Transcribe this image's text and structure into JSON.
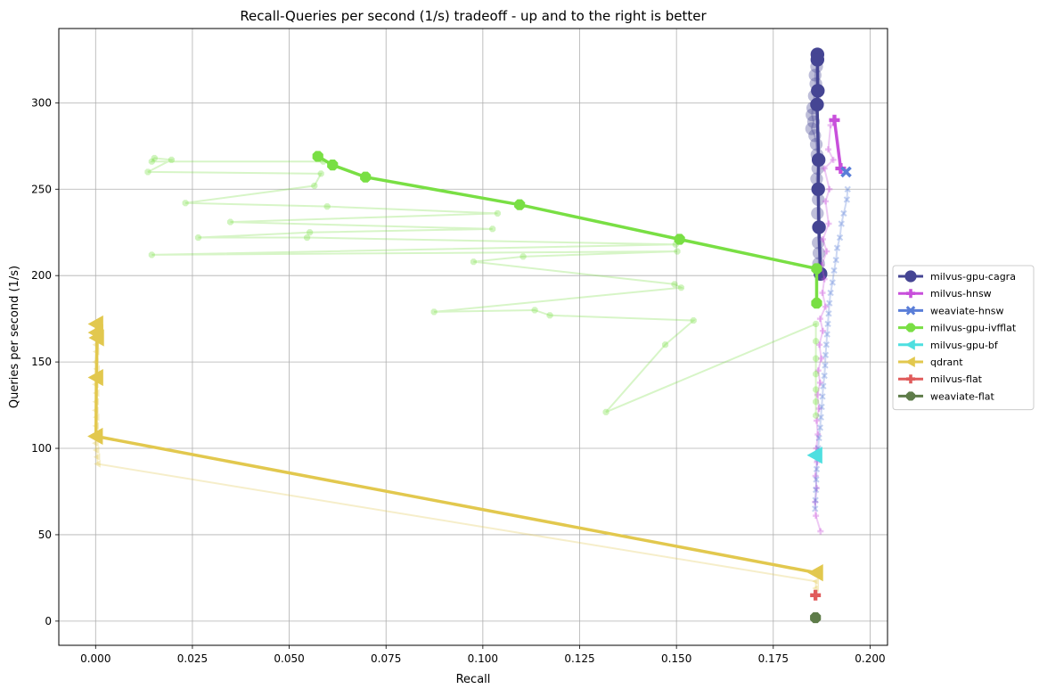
{
  "chart_data": {
    "type": "line",
    "title": "Recall-Queries per second (1/s) tradeoff - up and to the right is better",
    "xlabel": "Recall",
    "ylabel": "Queries per second (1/s)",
    "xlim": [
      -0.0095,
      0.2045
    ],
    "ylim": [
      -14,
      343
    ],
    "xticks": [
      0.0,
      0.025,
      0.05,
      0.075,
      0.1,
      0.125,
      0.15,
      0.175,
      0.2
    ],
    "xtick_labels": [
      "0.000",
      "0.025",
      "0.050",
      "0.075",
      "0.100",
      "0.125",
      "0.150",
      "0.175",
      "0.200"
    ],
    "yticks": [
      0,
      50,
      100,
      150,
      200,
      250,
      300
    ],
    "ytick_labels": [
      "0",
      "50",
      "100",
      "150",
      "200",
      "250",
      "300"
    ],
    "grid": true,
    "legend_position": "right-outside",
    "series": [
      {
        "name": "milvus-gpu-cagra",
        "color": "#454593",
        "marker": "circle",
        "front": [
          [
            0.1864,
            328
          ],
          [
            0.1864,
            325
          ],
          [
            0.1865,
            307
          ],
          [
            0.1863,
            299
          ],
          [
            0.1867,
            267
          ],
          [
            0.1866,
            250
          ],
          [
            0.1868,
            228
          ],
          [
            0.1872,
            201
          ]
        ],
        "scatter": [
          [
            0.1862,
            321
          ],
          [
            0.1858,
            316
          ],
          [
            0.186,
            311
          ],
          [
            0.1856,
            304
          ],
          [
            0.1852,
            297
          ],
          [
            0.185,
            293
          ],
          [
            0.1854,
            289
          ],
          [
            0.1849,
            285
          ],
          [
            0.1857,
            281
          ],
          [
            0.1861,
            276
          ],
          [
            0.1863,
            270
          ],
          [
            0.1865,
            262
          ],
          [
            0.1862,
            256
          ],
          [
            0.1866,
            244
          ],
          [
            0.1864,
            236
          ],
          [
            0.1866,
            219
          ],
          [
            0.1868,
            213
          ],
          [
            0.1867,
            207
          ]
        ]
      },
      {
        "name": "milvus-hnsw",
        "color": "#c84fdb",
        "marker": "plus",
        "front": [
          [
            0.1908,
            290
          ],
          [
            0.1924,
            262
          ]
        ],
        "scatter": [
          [
            0.1898,
            287
          ],
          [
            0.1892,
            273
          ],
          [
            0.1905,
            267
          ],
          [
            0.1882,
            262
          ],
          [
            0.1895,
            250
          ],
          [
            0.1885,
            243
          ],
          [
            0.1893,
            230
          ],
          [
            0.1878,
            221
          ],
          [
            0.1888,
            214
          ],
          [
            0.1875,
            206
          ],
          [
            0.1882,
            198
          ],
          [
            0.1877,
            190
          ],
          [
            0.1885,
            182
          ],
          [
            0.1871,
            175
          ],
          [
            0.1878,
            168
          ],
          [
            0.1869,
            160
          ],
          [
            0.1874,
            152
          ],
          [
            0.1866,
            145
          ],
          [
            0.1871,
            138
          ],
          [
            0.1864,
            131
          ],
          [
            0.1868,
            123
          ],
          [
            0.1862,
            116
          ],
          [
            0.1865,
            108
          ],
          [
            0.1861,
            100
          ],
          [
            0.1863,
            92
          ],
          [
            0.1859,
            84
          ],
          [
            0.1862,
            77
          ],
          [
            0.1858,
            69
          ],
          [
            0.186,
            61
          ],
          [
            0.1872,
            52
          ]
        ]
      },
      {
        "name": "weaviate-hnsw",
        "color": "#5a7ed8",
        "marker": "x",
        "front": [
          [
            0.1938,
            260
          ]
        ],
        "scatter": [
          [
            0.1942,
            250
          ],
          [
            0.194,
            244
          ],
          [
            0.1932,
            236
          ],
          [
            0.1926,
            230
          ],
          [
            0.1922,
            222
          ],
          [
            0.1915,
            216
          ],
          [
            0.1912,
            209
          ],
          [
            0.1907,
            203
          ],
          [
            0.1903,
            196
          ],
          [
            0.1898,
            190
          ],
          [
            0.1895,
            184
          ],
          [
            0.1893,
            178
          ],
          [
            0.1891,
            172
          ],
          [
            0.1889,
            166
          ],
          [
            0.1887,
            160
          ],
          [
            0.1885,
            154
          ],
          [
            0.1884,
            148
          ],
          [
            0.1882,
            142
          ],
          [
            0.1879,
            136
          ],
          [
            0.1877,
            130
          ],
          [
            0.1875,
            124
          ],
          [
            0.1873,
            118
          ],
          [
            0.1871,
            112
          ],
          [
            0.1868,
            106
          ],
          [
            0.1866,
            100
          ],
          [
            0.1864,
            94
          ],
          [
            0.1862,
            88
          ],
          [
            0.1861,
            82
          ],
          [
            0.186,
            76
          ],
          [
            0.1859,
            70
          ],
          [
            0.1858,
            65
          ]
        ]
      },
      {
        "name": "milvus-gpu-ivfflat",
        "color": "#79df44",
        "marker": "octagon",
        "front": [
          [
            0.0574,
            269
          ],
          [
            0.0612,
            264
          ],
          [
            0.0697,
            257
          ],
          [
            0.1095,
            241
          ],
          [
            0.1508,
            221
          ],
          [
            0.1862,
            204
          ],
          [
            0.1862,
            184
          ]
        ],
        "scatter": [
          [
            0.0588,
            266
          ],
          [
            0.0145,
            266
          ],
          [
            0.0152,
            268
          ],
          [
            0.0196,
            267
          ],
          [
            0.0135,
            260
          ],
          [
            0.0582,
            259
          ],
          [
            0.0565,
            252
          ],
          [
            0.0232,
            242
          ],
          [
            0.0598,
            240
          ],
          [
            0.1038,
            236
          ],
          [
            0.0348,
            231
          ],
          [
            0.1025,
            227
          ],
          [
            0.0553,
            225
          ],
          [
            0.0265,
            222
          ],
          [
            0.0546,
            222
          ],
          [
            0.1498,
            218
          ],
          [
            0.0145,
            212
          ],
          [
            0.1502,
            214
          ],
          [
            0.1104,
            211
          ],
          [
            0.0976,
            208
          ],
          [
            0.1495,
            195
          ],
          [
            0.1512,
            193
          ],
          [
            0.0874,
            179
          ],
          [
            0.1134,
            180
          ],
          [
            0.1173,
            177
          ],
          [
            0.1544,
            174
          ],
          [
            0.1471,
            160
          ],
          [
            0.1318,
            121
          ],
          [
            0.186,
            172
          ],
          [
            0.186,
            162
          ],
          [
            0.186,
            152
          ],
          [
            0.186,
            143
          ],
          [
            0.186,
            134
          ],
          [
            0.186,
            127
          ],
          [
            0.186,
            119
          ]
        ]
      },
      {
        "name": "milvus-gpu-bf",
        "color": "#4edfe0",
        "marker": "triangle-left",
        "front": [
          [
            0.1859,
            96
          ]
        ],
        "scatter": []
      },
      {
        "name": "qdrant",
        "color": "#e2c84e",
        "marker": "triangle-left",
        "front": [
          [
            0.0002,
            172
          ],
          [
            0.0002,
            167
          ],
          [
            0.0004,
            164
          ],
          [
            0.0002,
            141
          ],
          [
            0.0001,
            107
          ],
          [
            0.1861,
            28
          ]
        ],
        "scatter": [
          [
            0.0001,
            160
          ],
          [
            0.0002,
            156
          ],
          [
            0.0,
            150
          ],
          [
            0.0003,
            146
          ],
          [
            0.0,
            137
          ],
          [
            0.0002,
            132
          ],
          [
            0.0001,
            127
          ],
          [
            0.0,
            122
          ],
          [
            0.0002,
            118
          ],
          [
            0.0001,
            113
          ],
          [
            0.0,
            103
          ],
          [
            0.0002,
            99
          ],
          [
            0.0004,
            95
          ],
          [
            0.0005,
            91
          ],
          [
            0.186,
            23
          ],
          [
            0.186,
            19
          ]
        ]
      },
      {
        "name": "milvus-flat",
        "color": "#e05b5b",
        "marker": "plus",
        "front": [
          [
            0.1859,
            15
          ]
        ],
        "scatter": []
      },
      {
        "name": "weaviate-flat",
        "color": "#5e7c49",
        "marker": "octagon",
        "front": [
          [
            0.1859,
            2
          ]
        ],
        "scatter": []
      }
    ]
  }
}
